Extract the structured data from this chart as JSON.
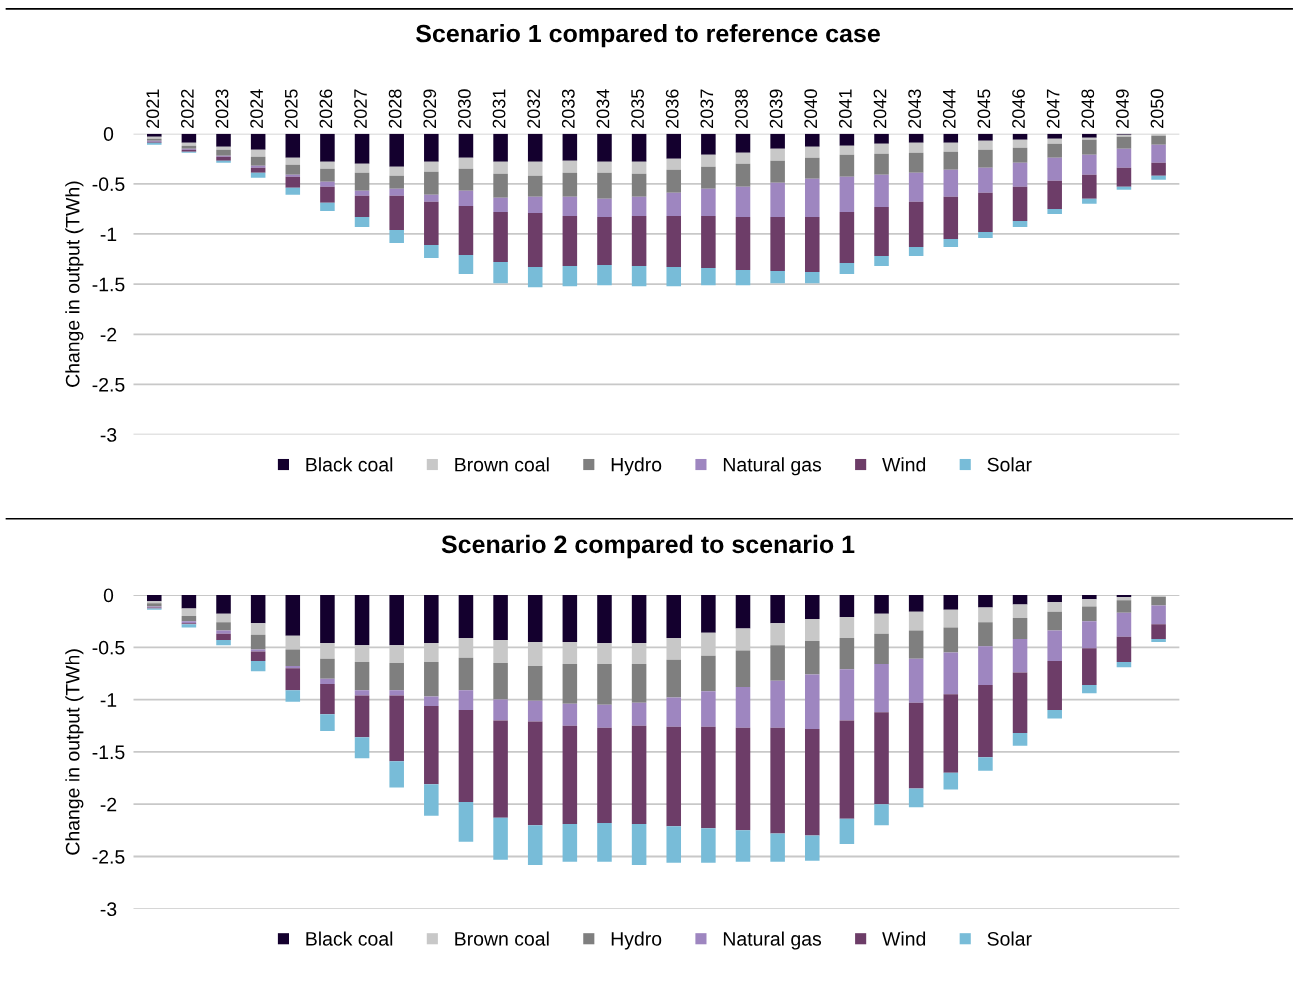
{
  "chart_data": [
    {
      "type": "bar",
      "stacked": true,
      "title": "Scenario 1 compared to reference case",
      "ylabel": "Change in output (TWh)",
      "categories": [
        "2021",
        "2022",
        "2023",
        "2024",
        "2025",
        "2026",
        "2027",
        "2028",
        "2029",
        "2030",
        "2031",
        "2032",
        "2033",
        "2034",
        "2035",
        "2036",
        "2037",
        "2038",
        "2039",
        "2040",
        "2041",
        "2042",
        "2043",
        "2044",
        "2045",
        "2046",
        "2047",
        "2048",
        "2049",
        "2050"
      ],
      "ylim": [
        -3,
        0
      ],
      "yticks": [
        0,
        -0.5,
        -1,
        -1.5,
        -2,
        -2.5,
        -3
      ],
      "grid": "y",
      "legend": "bottom",
      "series": [
        {
          "name": "Black coal",
          "color": "#14002e",
          "values": [
            -0.03,
            -0.09,
            -0.13,
            -0.16,
            -0.24,
            -0.28,
            -0.3,
            -0.33,
            -0.28,
            -0.24,
            -0.28,
            -0.28,
            -0.27,
            -0.28,
            -0.28,
            -0.25,
            -0.21,
            -0.19,
            -0.15,
            -0.13,
            -0.12,
            -0.1,
            -0.09,
            -0.09,
            -0.07,
            -0.06,
            -0.05,
            -0.04,
            -0.01,
            null
          ]
        },
        {
          "name": "Brown coal",
          "color": "#c8c8c8",
          "values": [
            -0.02,
            -0.03,
            -0.03,
            -0.07,
            -0.07,
            -0.07,
            -0.09,
            -0.09,
            -0.1,
            -0.11,
            -0.12,
            -0.14,
            -0.12,
            -0.11,
            -0.12,
            -0.11,
            -0.12,
            -0.11,
            -0.12,
            -0.11,
            -0.09,
            -0.1,
            -0.1,
            -0.09,
            -0.09,
            -0.08,
            -0.05,
            -0.02,
            -0.02,
            -0.02
          ]
        },
        {
          "name": "Hydro",
          "color": "#7f7f7f",
          "values": [
            -0.02,
            -0.03,
            -0.06,
            -0.09,
            -0.1,
            -0.13,
            -0.18,
            -0.13,
            -0.23,
            -0.22,
            -0.24,
            -0.21,
            -0.24,
            -0.26,
            -0.23,
            -0.23,
            -0.22,
            -0.23,
            -0.22,
            -0.21,
            -0.22,
            -0.21,
            -0.2,
            -0.18,
            -0.18,
            -0.15,
            -0.14,
            -0.15,
            -0.12,
            -0.09
          ]
        },
        {
          "name": "Natural gas",
          "color": "#9e86c0",
          "values": [
            -0.01,
            -0.01,
            -0.01,
            -0.02,
            -0.02,
            -0.05,
            -0.05,
            -0.07,
            -0.07,
            -0.15,
            -0.14,
            -0.16,
            -0.19,
            -0.18,
            -0.19,
            -0.23,
            -0.27,
            -0.3,
            -0.34,
            -0.38,
            -0.35,
            -0.32,
            -0.29,
            -0.27,
            -0.25,
            -0.24,
            -0.23,
            -0.2,
            -0.19,
            -0.18
          ]
        },
        {
          "name": "Wind",
          "color": "#6d3d68",
          "values": [
            -0.01,
            -0.02,
            -0.04,
            -0.05,
            -0.11,
            -0.16,
            -0.21,
            -0.34,
            -0.43,
            -0.49,
            -0.5,
            -0.54,
            -0.5,
            -0.48,
            -0.5,
            -0.51,
            -0.52,
            -0.53,
            -0.54,
            -0.55,
            -0.51,
            -0.49,
            -0.45,
            -0.42,
            -0.39,
            -0.34,
            -0.28,
            -0.24,
            -0.19,
            -0.13
          ]
        },
        {
          "name": "Solar",
          "color": "#78bcd8",
          "values": [
            -0.02,
            -0.01,
            -0.02,
            -0.05,
            -0.07,
            -0.08,
            -0.1,
            -0.13,
            -0.13,
            -0.19,
            -0.21,
            -0.2,
            -0.2,
            -0.2,
            -0.2,
            -0.19,
            -0.17,
            -0.15,
            -0.12,
            -0.11,
            -0.11,
            -0.1,
            -0.09,
            -0.08,
            -0.06,
            -0.06,
            -0.05,
            -0.05,
            -0.03,
            -0.04
          ]
        }
      ]
    },
    {
      "type": "bar",
      "stacked": true,
      "title": "Scenario 2 compared to scenario 1",
      "ylabel": "Change in output (TWh)",
      "categories": [
        "2021",
        "2022",
        "2023",
        "2024",
        "2025",
        "2026",
        "2027",
        "2028",
        "2029",
        "2030",
        "2031",
        "2032",
        "2033",
        "2034",
        "2035",
        "2036",
        "2037",
        "2038",
        "2039",
        "2040",
        "2041",
        "2042",
        "2043",
        "2044",
        "2045",
        "2046",
        "2047",
        "2048",
        "2049",
        "2050"
      ],
      "tick_labels": "y",
      "ylim": [
        -3,
        0
      ],
      "yticks": [
        0,
        -0.5,
        -1,
        -1.5,
        -2,
        -2.5,
        -3
      ],
      "grid": "y",
      "legend": "bottom",
      "series": [
        {
          "name": "Black coal",
          "color": "#14002e",
          "values": [
            -0.06,
            -0.13,
            -0.18,
            -0.27,
            -0.39,
            -0.46,
            -0.48,
            -0.48,
            -0.46,
            -0.41,
            -0.43,
            -0.45,
            -0.45,
            -0.46,
            -0.46,
            -0.41,
            -0.36,
            -0.32,
            -0.27,
            -0.23,
            -0.21,
            -0.18,
            -0.16,
            -0.14,
            -0.12,
            -0.09,
            -0.07,
            -0.04,
            -0.02,
            null
          ]
        },
        {
          "name": "Brown coal",
          "color": "#c8c8c8",
          "values": [
            -0.02,
            -0.07,
            -0.08,
            -0.11,
            -0.13,
            -0.15,
            -0.16,
            -0.17,
            -0.18,
            -0.19,
            -0.22,
            -0.23,
            -0.21,
            -0.2,
            -0.2,
            -0.21,
            -0.22,
            -0.21,
            -0.21,
            -0.21,
            -0.2,
            -0.19,
            -0.18,
            -0.17,
            -0.14,
            -0.13,
            -0.09,
            -0.07,
            -0.03,
            -0.02
          ]
        },
        {
          "name": "Hydro",
          "color": "#7f7f7f",
          "values": [
            -0.03,
            -0.05,
            -0.08,
            -0.14,
            -0.16,
            -0.19,
            -0.27,
            -0.26,
            -0.33,
            -0.31,
            -0.35,
            -0.33,
            -0.38,
            -0.39,
            -0.37,
            -0.36,
            -0.34,
            -0.35,
            -0.34,
            -0.32,
            -0.3,
            -0.29,
            -0.27,
            -0.24,
            -0.23,
            -0.2,
            -0.18,
            -0.14,
            -0.12,
            -0.08
          ]
        },
        {
          "name": "Natural gas",
          "color": "#9e86c0",
          "values": [
            -0.01,
            -0.02,
            -0.03,
            -0.02,
            -0.02,
            -0.05,
            -0.05,
            -0.05,
            -0.09,
            -0.19,
            -0.2,
            -0.2,
            -0.21,
            -0.22,
            -0.22,
            -0.28,
            -0.34,
            -0.39,
            -0.45,
            -0.52,
            -0.49,
            -0.46,
            -0.42,
            -0.4,
            -0.37,
            -0.32,
            -0.29,
            -0.26,
            -0.23,
            -0.18
          ]
        },
        {
          "name": "Wind",
          "color": "#6d3d68",
          "values": [
            -0.01,
            -0.01,
            -0.06,
            -0.09,
            -0.21,
            -0.29,
            -0.4,
            -0.63,
            -0.75,
            -0.88,
            -0.93,
            -0.99,
            -0.94,
            -0.91,
            -0.94,
            -0.95,
            -0.97,
            -0.98,
            -1.01,
            -1.02,
            -0.94,
            -0.88,
            -0.82,
            -0.75,
            -0.69,
            -0.58,
            -0.47,
            -0.35,
            -0.24,
            -0.14
          ]
        },
        {
          "name": "Solar",
          "color": "#78bcd8",
          "values": [
            -0.01,
            -0.03,
            -0.05,
            -0.1,
            -0.11,
            -0.16,
            -0.2,
            -0.25,
            -0.3,
            -0.38,
            -0.4,
            -0.38,
            -0.36,
            -0.37,
            -0.39,
            -0.35,
            -0.33,
            -0.3,
            -0.27,
            -0.24,
            -0.24,
            -0.2,
            -0.18,
            -0.16,
            -0.13,
            -0.12,
            -0.08,
            -0.08,
            -0.05,
            -0.03
          ]
        }
      ]
    }
  ]
}
